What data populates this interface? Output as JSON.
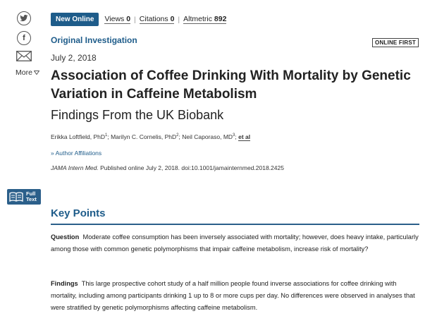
{
  "sidebar": {
    "twitter_glyph": "𝕥",
    "facebook_glyph": "f",
    "more_label": "More",
    "full_text_label": "Full Text"
  },
  "topbar": {
    "badge": "New Online",
    "views_label": "Views",
    "views_value": "0",
    "citations_label": "Citations",
    "citations_value": "0",
    "altmetric_label": "Altmetric",
    "altmetric_value": "892"
  },
  "article": {
    "type": "Original Investigation",
    "online_first": "ONLINE FIRST",
    "date": "July 2, 2018",
    "title": "Association of Coffee Drinking With Mortality by Genetic Variation in Caffeine Metabolism",
    "subtitle": "Findings From the UK Biobank",
    "authors": [
      {
        "name": "Erikka Loftfield, PhD",
        "sup": "1"
      },
      {
        "name": "Marilyn C. Cornelis, PhD",
        "sup": "2"
      },
      {
        "name": "Neil Caporaso, MD",
        "sup": "3"
      }
    ],
    "et_al": "et al",
    "affiliations": "Author Affiliations",
    "journal": "JAMA Intern Med.",
    "citation_rest": " Published online July 2, 2018. doi:10.1001/jamainternmed.2018.2425"
  },
  "key_points": {
    "heading": "Key Points",
    "question_label": "Question",
    "question_text": "Moderate coffee consumption has been inversely associated with mortality; however, does heavy intake, particularly among those with common genetic polymorphisms that impair caffeine metabolism, increase risk of mortality?",
    "findings_label": "Findings",
    "findings_text": "This large prospective cohort study of a half million people found inverse associations for coffee drinking with mortality, including among participants drinking 1 up to 8 or more cups per day. No differences were observed in analyses that were stratified by genetic polymorphisms affecting caffeine metabolism."
  },
  "colors": {
    "accent": "#1e5c8a",
    "badge_bg": "#1e5c8a",
    "full_text_bg": "#2b5f8a"
  }
}
